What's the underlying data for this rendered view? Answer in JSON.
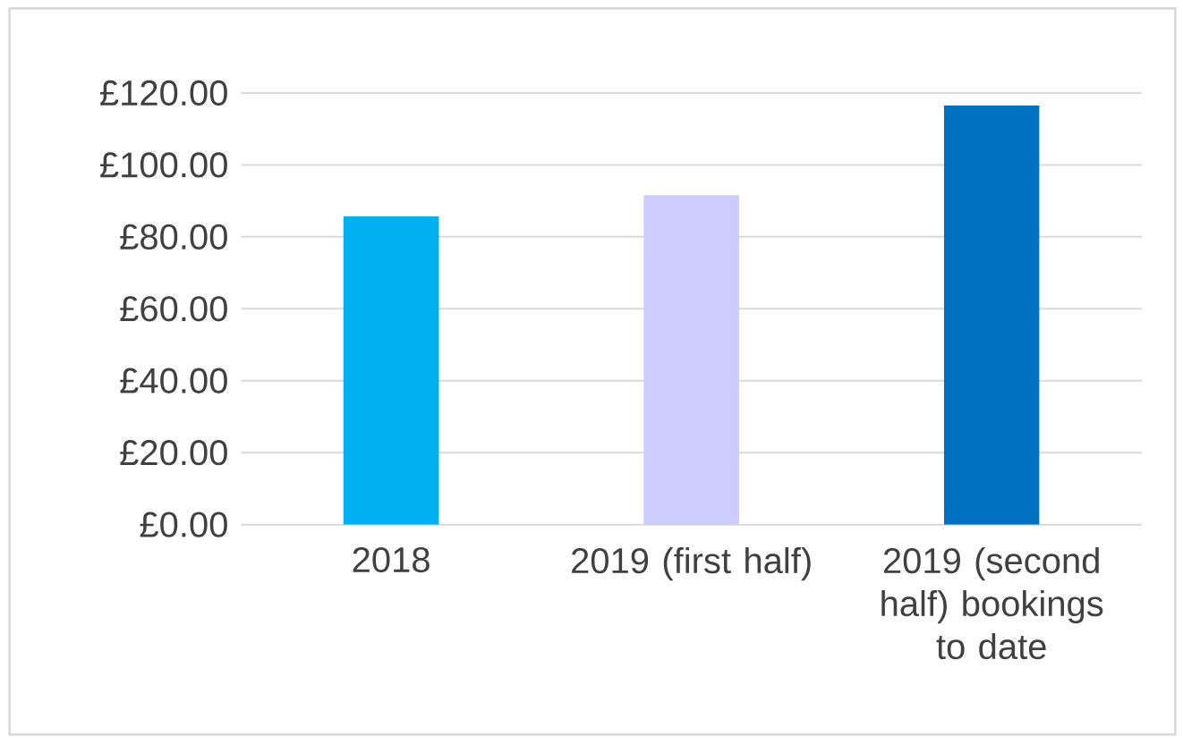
{
  "chart_data": {
    "type": "bar",
    "categories": [
      "2018",
      "2019 (first half)",
      "2019 (second half) bookings to date"
    ],
    "values": [
      85.7,
      91.6,
      116.5
    ],
    "colors": [
      "#00b0f0",
      "#ccccff",
      "#0070c0"
    ],
    "ylim": [
      0,
      120
    ],
    "yticks": [
      {
        "value": 0,
        "label": "£0.00"
      },
      {
        "value": 20,
        "label": "£20.00"
      },
      {
        "value": 40,
        "label": "£40.00"
      },
      {
        "value": 60,
        "label": "£60.00"
      },
      {
        "value": 80,
        "label": "£80.00"
      },
      {
        "value": 100,
        "label": "£100.00"
      },
      {
        "value": 120,
        "label": "£120.00"
      }
    ],
    "grid": "y"
  }
}
